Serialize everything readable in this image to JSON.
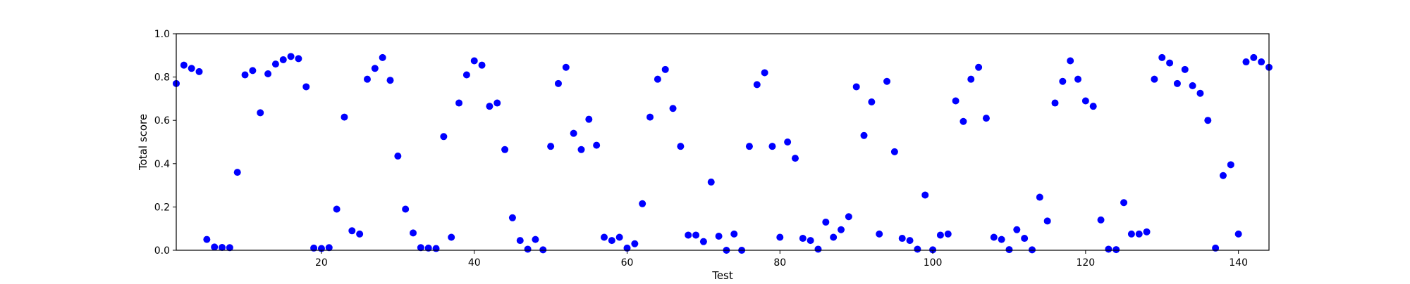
{
  "chart_data": {
    "type": "scatter",
    "title": "",
    "xlabel": "Test",
    "ylabel": "Total score",
    "xlim": [
      1,
      144
    ],
    "ylim": [
      0,
      1
    ],
    "x_ticks": [
      20,
      40,
      60,
      80,
      100,
      120,
      140
    ],
    "x_tick_labels": [
      "20",
      "40",
      "60",
      "80",
      "100",
      "120",
      "140"
    ],
    "y_ticks": [
      0.0,
      0.2,
      0.4,
      0.6,
      0.8,
      1.0
    ],
    "y_tick_labels": [
      "0.0",
      "0.2",
      "0.4",
      "0.6",
      "0.8",
      "1.0"
    ],
    "grid": false,
    "legend": "none",
    "point_color": "#0000ff",
    "x": [
      1,
      2,
      3,
      4,
      5,
      6,
      7,
      8,
      9,
      10,
      11,
      12,
      13,
      14,
      15,
      16,
      17,
      18,
      19,
      20,
      21,
      22,
      23,
      24,
      25,
      26,
      27,
      28,
      29,
      30,
      31,
      32,
      33,
      34,
      35,
      36,
      37,
      38,
      39,
      40,
      41,
      42,
      43,
      44,
      45,
      46,
      47,
      48,
      49,
      50,
      51,
      52,
      53,
      54,
      55,
      56,
      57,
      58,
      59,
      60,
      61,
      62,
      63,
      64,
      65,
      66,
      67,
      68,
      69,
      70,
      71,
      72,
      73,
      74,
      75,
      76,
      77,
      78,
      79,
      80,
      81,
      82,
      83,
      84,
      85,
      86,
      87,
      88,
      89,
      90,
      91,
      92,
      93,
      94,
      95,
      96,
      97,
      98,
      99,
      100,
      101,
      102,
      103,
      104,
      105,
      106,
      107,
      108,
      109,
      110,
      111,
      112,
      113,
      114,
      115,
      116,
      117,
      118,
      119,
      120,
      121,
      122,
      123,
      124,
      125,
      126,
      127,
      128,
      129,
      130,
      131,
      132,
      133,
      134,
      135,
      136,
      137,
      138,
      139,
      140,
      141,
      142,
      143,
      144
    ],
    "y": [
      0.77,
      0.855,
      0.84,
      0.825,
      0.05,
      0.015,
      0.013,
      0.012,
      0.36,
      0.81,
      0.83,
      0.635,
      0.815,
      0.86,
      0.88,
      0.895,
      0.885,
      0.755,
      0.01,
      0.008,
      0.012,
      0.19,
      0.615,
      0.09,
      0.075,
      0.79,
      0.84,
      0.89,
      0.785,
      0.435,
      0.19,
      0.08,
      0.012,
      0.01,
      0.008,
      0.525,
      0.06,
      0.68,
      0.81,
      0.875,
      0.855,
      0.665,
      0.68,
      0.465,
      0.15,
      0.045,
      0.005,
      0.05,
      0.002,
      0.48,
      0.77,
      0.845,
      0.54,
      0.465,
      0.605,
      0.485,
      0.06,
      0.045,
      0.06,
      0.01,
      0.03,
      0.215,
      0.615,
      0.79,
      0.835,
      0.655,
      0.48,
      0.07,
      0.07,
      0.04,
      0.315,
      0.065,
      0.0,
      0.075,
      0.0,
      0.48,
      0.765,
      0.82,
      0.48,
      0.06,
      0.5,
      0.425,
      0.055,
      0.045,
      0.005,
      0.13,
      0.06,
      0.095,
      0.155,
      0.755,
      0.53,
      0.685,
      0.075,
      0.78,
      0.455,
      0.055,
      0.045,
      0.005,
      0.255,
      0.002,
      0.07,
      0.075,
      0.69,
      0.595,
      0.79,
      0.845,
      0.61,
      0.06,
      0.05,
      0.003,
      0.095,
      0.055,
      0.002,
      0.245,
      0.135,
      0.68,
      0.78,
      0.875,
      0.79,
      0.69,
      0.665,
      0.14,
      0.005,
      0.003,
      0.22,
      0.075,
      0.075,
      0.085,
      0.79,
      0.89,
      0.865,
      0.77,
      0.835,
      0.76,
      0.725,
      0.6,
      0.01,
      0.345,
      0.395,
      0.075,
      0.87,
      0.89,
      0.87,
      0.845
    ]
  }
}
